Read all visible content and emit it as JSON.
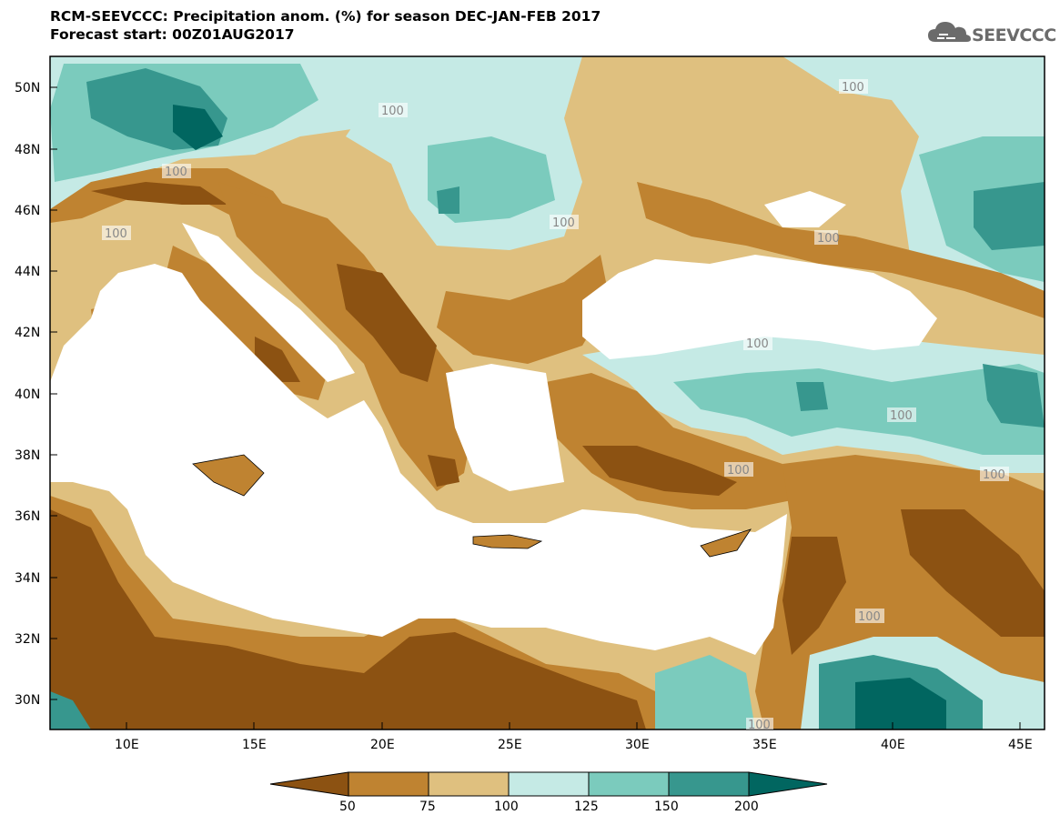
{
  "title": {
    "line1": "RCM-SEEVCCC: Precipitation anom. (%) for season DEC-JAN-FEB 2017",
    "line2": "Forecast start: 00Z01AUG2017"
  },
  "logo": {
    "text": "SEEVCCC",
    "icon": "cloud-logo-icon"
  },
  "map": {
    "lat_labels": [
      "50N",
      "48N",
      "46N",
      "44N",
      "42N",
      "40N",
      "38N",
      "36N",
      "34N",
      "32N",
      "30N"
    ],
    "lon_labels": [
      "10E",
      "15E",
      "20E",
      "25E",
      "30E",
      "35E",
      "40E",
      "45E"
    ],
    "contour_labels": [
      "100",
      "100",
      "100",
      "100",
      "100",
      "100",
      "100",
      "100",
      "100",
      "100",
      "100",
      "100"
    ]
  },
  "colorbar": {
    "tick_labels": [
      "50",
      "75",
      "100",
      "125",
      "150",
      "200"
    ],
    "colors": [
      "#8c5212",
      "#bf8331",
      "#dfc07f",
      "#c5eae5",
      "#7bcbbd",
      "#37978e",
      "#016660"
    ]
  },
  "colors": {
    "very_dry": "#8c5212",
    "dry": "#bf8331",
    "slightly_dry": "#dfc07f",
    "slightly_wet": "#c5eae5",
    "wet": "#7bcbbd",
    "very_wet": "#37978e",
    "extreme_wet": "#016660",
    "sea": "#ffffff"
  }
}
